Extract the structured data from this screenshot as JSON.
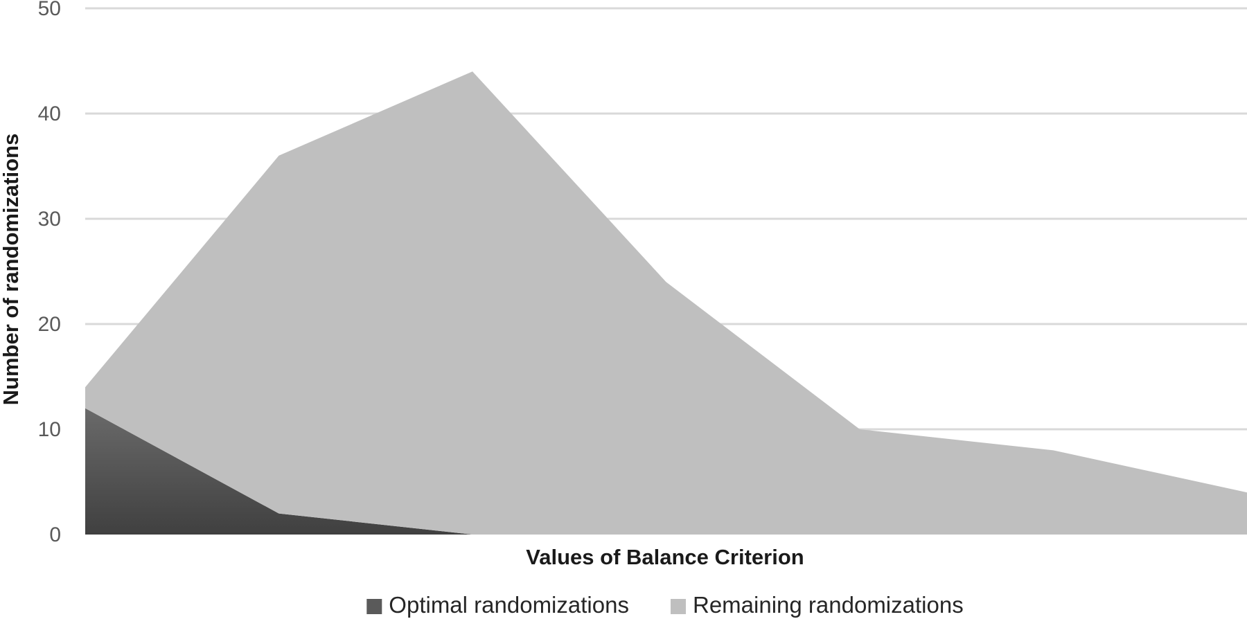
{
  "chart_data": {
    "type": "area",
    "stacked": true,
    "title": "",
    "xlabel": "Values of Balance Criterion",
    "ylabel": "Number of randomizations",
    "ylim": [
      0,
      50
    ],
    "yticks": [
      0,
      10,
      20,
      30,
      40,
      50
    ],
    "x_tick_labels_shown": false,
    "grid": true,
    "legend_position": "bottom",
    "x": [
      1,
      2,
      3,
      4,
      5,
      6,
      7
    ],
    "series": [
      {
        "name": "Optimal randomizations",
        "values": [
          12,
          2,
          0,
          0,
          0,
          0,
          0
        ],
        "color": "#5a5a5a",
        "gradient_top": "#6a6a6a",
        "gradient_bottom": "#404040"
      },
      {
        "name": "Remaining randomizations",
        "values": [
          2,
          34,
          44,
          24,
          10,
          8,
          4
        ],
        "color": "#bfbfbf"
      }
    ]
  }
}
